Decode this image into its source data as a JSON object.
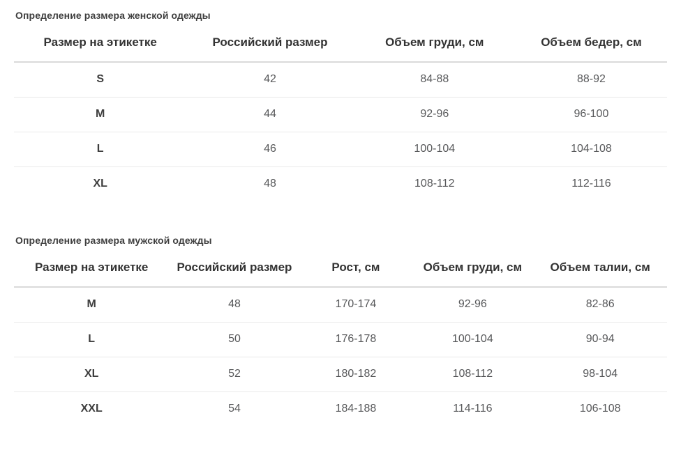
{
  "page": {
    "background_color": "#ffffff",
    "heading_color": "#3e3e3e",
    "header_text_color": "#333333",
    "cell_text_color": "#57585a",
    "header_border_color": "#dadada",
    "row_divider_color": "#e9e9e9"
  },
  "sections": [
    {
      "title": "Определение размера женской одежды",
      "table": {
        "headers": [
          "Размер на этикетке",
          "Российский размер",
          "Объем груди, см",
          "Объем бедер, см"
        ],
        "rows": [
          [
            "S",
            "42",
            "84-88",
            "88-92"
          ],
          [
            "M",
            "44",
            "92-96",
            "96-100"
          ],
          [
            "L",
            "46",
            "100-104",
            "104-108"
          ],
          [
            "XL",
            "48",
            "108-112",
            "112-116"
          ]
        ]
      }
    },
    {
      "title": "Определение размера мужской одежды",
      "table": {
        "headers": [
          "Размер на этикетке",
          "Российский размер",
          "Рост, см",
          "Объем груди, см",
          "Объем талии, см"
        ],
        "rows": [
          [
            "M",
            "48",
            "170-174",
            "92-96",
            "82-86"
          ],
          [
            "L",
            "50",
            "176-178",
            "100-104",
            "90-94"
          ],
          [
            "XL",
            "52",
            "180-182",
            "108-112",
            "98-104"
          ],
          [
            "XXL",
            "54",
            "184-188",
            "114-116",
            "106-108"
          ]
        ]
      }
    }
  ]
}
